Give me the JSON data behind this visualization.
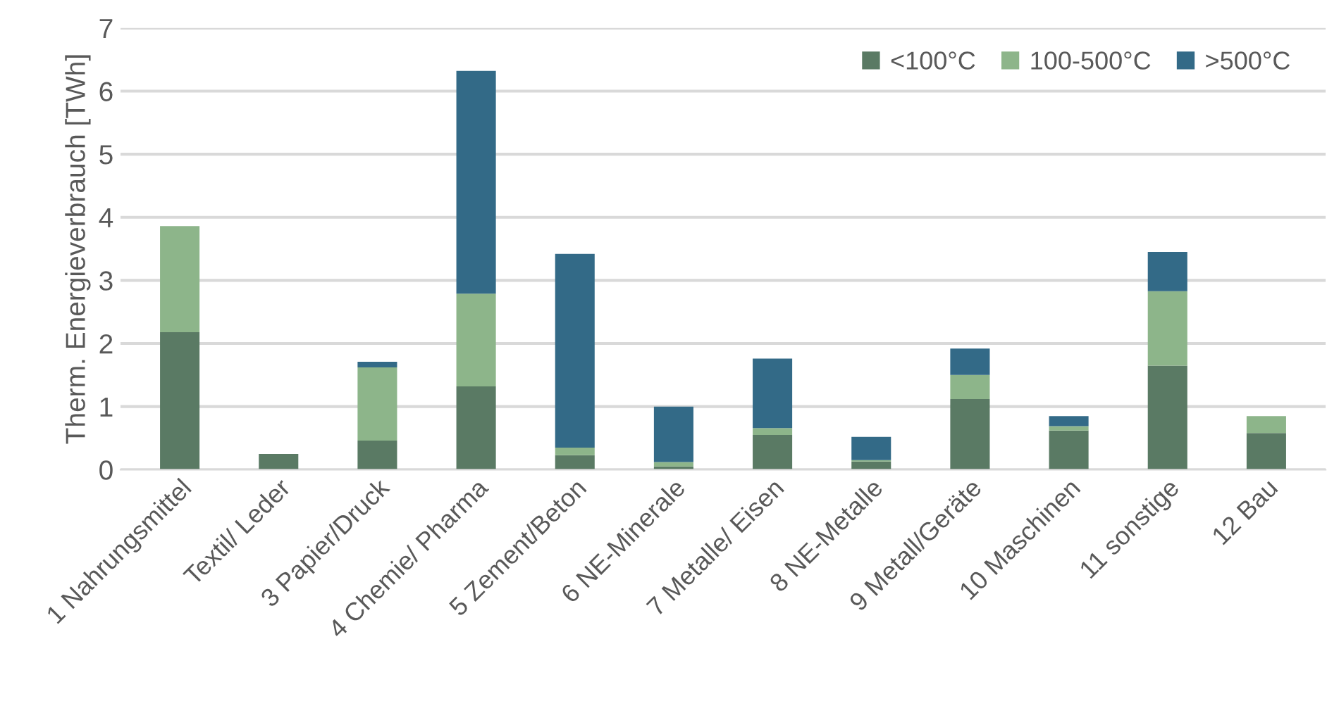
{
  "chart_data": {
    "type": "bar",
    "stacked": true,
    "ylabel": "Therm. Energieverbrauch [TWh]",
    "categories": [
      "1 Nahrungsmittel",
      "Textil/ Leder",
      "3 Papier/Druck",
      "4 Chemie/ Pharma",
      "5 Zement/Beton",
      "6 NE-Minerale",
      "7 Metalle/ Eisen",
      "8 NE-Metalle",
      "9 Metall/Geräte",
      "10 Maschinen",
      "11 sonstige",
      "12 Bau"
    ],
    "series": [
      {
        "name": "<100°C",
        "color": "#5a7a64",
        "values": [
          2.18,
          0.25,
          0.46,
          1.32,
          0.23,
          0.05,
          0.55,
          0.13,
          1.12,
          0.62,
          1.65,
          0.58
        ]
      },
      {
        "name": "100-500°C",
        "color": "#8db58a",
        "values": [
          1.68,
          0,
          1.16,
          1.47,
          0.12,
          0.07,
          0.11,
          0.02,
          0.38,
          0.07,
          1.18,
          0.27
        ]
      },
      {
        "name": ">500°C",
        "color": "#336a87",
        "values": [
          0,
          0,
          0.09,
          3.53,
          3.07,
          0.88,
          1.1,
          0.37,
          0.42,
          0.16,
          0.62,
          0
        ]
      }
    ],
    "ylim": [
      0,
      7
    ],
    "yticks": [
      0,
      1,
      2,
      3,
      4,
      5,
      6,
      7
    ],
    "grid": "y",
    "legend": "top right"
  }
}
